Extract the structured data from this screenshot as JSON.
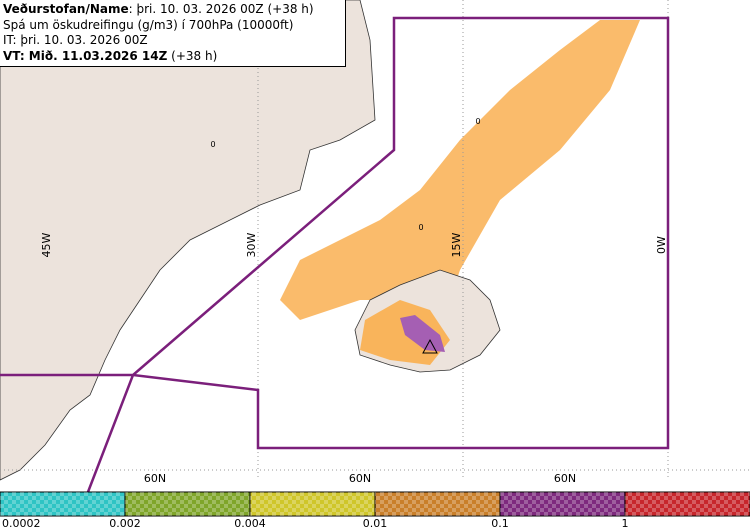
{
  "header": {
    "line1_bold": "Veðurstofan/Name",
    "line1_rest": ": þri. 10. 03. 2026 00Z (+38 h)",
    "line2": "Spá um öskudreifingu (g/m3) í 700hPa (10000ft)",
    "line3": "IT: þri. 10. 03. 2026 00Z",
    "line4_bold": "VT: Mið. 11.03.2026 14Z",
    "line4_rest": " (+38 h)"
  },
  "map": {
    "lon_labels": [
      "45W",
      "30W",
      "15W",
      "0W"
    ],
    "lat_labels": [
      "60N",
      "60N",
      "60N"
    ],
    "zero_labels": [
      "0",
      "0",
      "0"
    ]
  },
  "legend": {
    "labels": [
      "0.0002",
      "0.002",
      "0.004",
      "0.01",
      "0.1",
      "1"
    ]
  }
}
